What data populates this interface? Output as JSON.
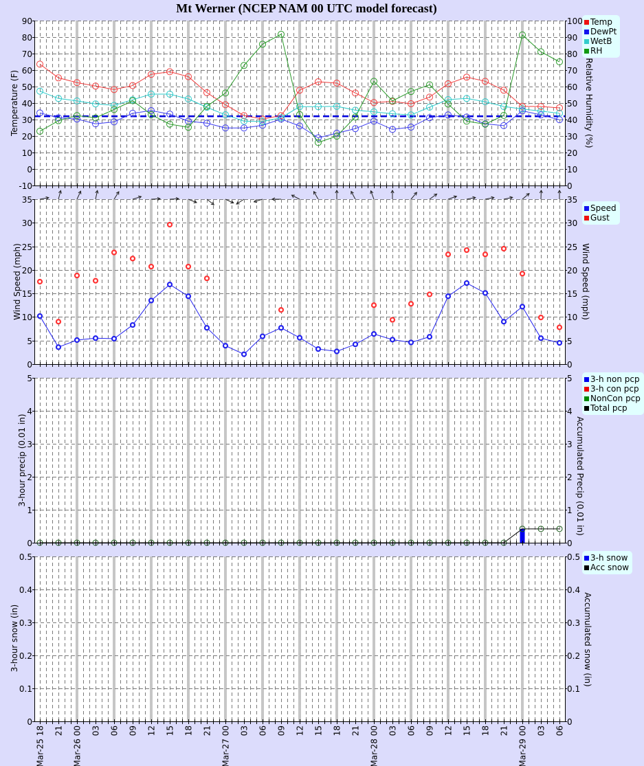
{
  "title": "Mt Werner (NCEP NAM 00 UTC model forecast)",
  "x_axis": {
    "interval_hours": 3,
    "tick_labels": [
      "Mar-25 18",
      "21",
      "Mar-26 00",
      "03",
      "06",
      "09",
      "12",
      "15",
      "18",
      "21",
      "Mar-27 00",
      "03",
      "06",
      "09",
      "12",
      "15",
      "18",
      "21",
      "Mar-28 00",
      "03",
      "06",
      "09",
      "12",
      "15",
      "18",
      "21",
      "Mar-29 00",
      "03",
      "06"
    ]
  },
  "chart_data": [
    {
      "panel": "temperature",
      "type": "line",
      "title": "",
      "xlabel": "",
      "ylabel": "Temperature (F)",
      "y2label": "Relative Humidity (%)",
      "ylim": [
        -10,
        90
      ],
      "y2lim": [
        0,
        100
      ],
      "yticks": [
        "-10",
        "0",
        "10",
        "20",
        "30",
        "40",
        "50",
        "60",
        "70",
        "80",
        "90"
      ],
      "y2ticks": [
        "0",
        "10",
        "20",
        "30",
        "40",
        "50",
        "60",
        "70",
        "80",
        "90",
        "100"
      ],
      "grid": true,
      "legend_position": "right-top",
      "reference_lines": [
        {
          "value": 32,
          "color": "#0000dd",
          "style": "dashed"
        }
      ],
      "series": [
        {
          "name": "Temp",
          "axis": "y",
          "style": "line+rings",
          "color": "#f03c3c",
          "values": [
            63.6,
            55.3,
            52.4,
            50.3,
            48.2,
            50.6,
            57.4,
            59.0,
            56.0,
            46.3,
            39.0,
            32.4,
            30.3,
            32.4,
            47.8,
            52.9,
            52.1,
            46.1,
            40.3,
            41.0,
            39.6,
            43.6,
            51.7,
            55.7,
            53.2,
            47.8,
            38.0,
            37.9,
            37.1
          ]
        },
        {
          "name": "DewPt",
          "axis": "y",
          "style": "line+rings",
          "color": "#3c3cf0",
          "values": [
            34.0,
            31.1,
            30.3,
            27.4,
            28.6,
            33.8,
            35.4,
            33.3,
            29.0,
            27.8,
            24.9,
            24.9,
            26.5,
            30.3,
            26.1,
            18.9,
            21.7,
            24.5,
            29.0,
            24.0,
            25.4,
            31.1,
            32.8,
            31.5,
            27.4,
            26.3,
            35.3,
            32.8,
            29.9
          ]
        },
        {
          "name": "WetB",
          "axis": "y",
          "style": "line+rings",
          "color": "#2ccaca",
          "values": [
            47.2,
            42.8,
            41.3,
            39.5,
            38.6,
            42.0,
            45.4,
            45.4,
            42.5,
            37.4,
            32.9,
            29.0,
            28.8,
            31.1,
            37.8,
            37.8,
            38.0,
            35.7,
            34.7,
            33.5,
            32.8,
            37.5,
            42.1,
            42.8,
            40.8,
            37.9,
            36.4,
            35.1,
            33.8
          ]
        },
        {
          "name": "RH",
          "axis": "y2",
          "style": "line+rings",
          "color": "#2a9a2a",
          "values": [
            32.9,
            39.3,
            42.4,
            41.0,
            46.1,
            51.4,
            43.0,
            37.2,
            35.3,
            48.0,
            56.1,
            72.8,
            85.7,
            91.7,
            43.0,
            26.1,
            29.9,
            41.5,
            63.2,
            51.3,
            57.0,
            61.1,
            49.4,
            39.0,
            37.2,
            42.5,
            91.3,
            81.1,
            75.0
          ]
        }
      ],
      "legend": [
        {
          "label": "Temp",
          "color": "#ee1111"
        },
        {
          "label": "DewPt",
          "color": "#1111ee"
        },
        {
          "label": "WetB",
          "color": "#33cccc"
        },
        {
          "label": "RH",
          "color": "#119911"
        }
      ]
    },
    {
      "panel": "wind",
      "type": "line",
      "title": "",
      "xlabel": "",
      "ylabel": "Wind Speed (mph)",
      "y2label": "Wind Speed (mph)",
      "ylim": [
        0,
        35
      ],
      "y2lim": [
        0,
        35
      ],
      "yticks": [
        "0",
        "5",
        "10",
        "15",
        "20",
        "25",
        "30",
        "35"
      ],
      "y2ticks": [
        "0",
        "5",
        "10",
        "15",
        "20",
        "25",
        "30",
        "35"
      ],
      "grid": true,
      "legend_position": "right-top",
      "wind_direction_arrows_deg": [
        10,
        75,
        65,
        78,
        58,
        17,
        3,
        3,
        -22,
        -38,
        -25,
        -147,
        -163,
        180,
        153,
        120,
        90,
        118,
        110,
        90,
        50,
        36,
        19,
        11,
        11,
        12,
        40,
        88,
        90
      ],
      "series": [
        {
          "name": "Speed",
          "axis": "y",
          "style": "line+dots",
          "color": "#2222ee",
          "values": [
            10.2,
            3.6,
            5.1,
            5.5,
            5.4,
            8.3,
            13.5,
            16.9,
            14.4,
            7.7,
            3.9,
            2.1,
            5.9,
            7.7,
            5.6,
            3.2,
            2.7,
            4.2,
            6.4,
            5.2,
            4.6,
            5.8,
            14.4,
            17.2,
            15.1,
            9.0,
            12.2,
            5.5,
            4.5
          ]
        },
        {
          "name": "Gust",
          "axis": "y",
          "style": "dots",
          "color": "#ff3333",
          "values": [
            17.5,
            9.0,
            18.8,
            17.7,
            23.7,
            22.4,
            20.7,
            29.6,
            20.7,
            18.2,
            null,
            null,
            null,
            11.5,
            null,
            null,
            null,
            null,
            12.5,
            9.4,
            12.8,
            14.8,
            23.3,
            24.2,
            23.3,
            24.5,
            19.2,
            9.9,
            7.8
          ]
        }
      ],
      "legend": [
        {
          "label": "Speed",
          "color": "#1111ee"
        },
        {
          "label": "Gust",
          "color": "#ee1111"
        }
      ]
    },
    {
      "panel": "precip",
      "type": "bar",
      "title": "",
      "xlabel": "",
      "ylabel": "3-hour precip (0.01 in)",
      "y2label": "Accumulated Precip (0.01 in)",
      "ylim": [
        0,
        5
      ],
      "y2lim": [
        0,
        5
      ],
      "yticks": [
        "0",
        "1",
        "2",
        "3",
        "4",
        "5"
      ],
      "y2ticks": [
        "0",
        "1",
        "2",
        "3",
        "4",
        "5"
      ],
      "grid": true,
      "legend_position": "right-top",
      "series": [
        {
          "name": "3-h non pcp",
          "axis": "y",
          "style": "bar",
          "color": "#0000ee",
          "values": [
            0,
            0,
            0,
            0,
            0,
            0,
            0,
            0,
            0,
            0,
            0,
            0,
            0,
            0,
            0,
            0,
            0,
            0,
            0,
            0,
            0,
            0,
            0,
            0,
            0,
            0,
            0.42,
            0,
            0
          ]
        },
        {
          "name": "3-h con pcp",
          "axis": "y",
          "style": "bar",
          "color": "#ee0000",
          "values": [
            0,
            0,
            0,
            0,
            0,
            0,
            0,
            0,
            0,
            0,
            0,
            0,
            0,
            0,
            0,
            0,
            0,
            0,
            0,
            0,
            0,
            0,
            0,
            0,
            0,
            0,
            0,
            0,
            0
          ]
        },
        {
          "name": "Total pcp",
          "axis": "y2",
          "style": "line",
          "color": "#000000",
          "values": [
            0,
            0,
            0,
            0,
            0,
            0,
            0,
            0,
            0,
            0,
            0,
            0,
            0,
            0,
            0,
            0,
            0,
            0,
            0,
            0,
            0,
            0,
            0,
            0,
            0,
            0,
            0.42,
            0.42,
            0.42
          ]
        },
        {
          "name": "NonCon pcp",
          "axis": "y2",
          "style": "rings",
          "color": "#1a5a1a",
          "values": [
            0,
            0,
            0,
            0,
            0,
            0,
            0,
            0,
            0,
            0,
            0,
            0,
            0,
            0,
            0,
            0,
            0,
            0,
            0,
            0,
            0,
            0,
            0,
            0,
            0,
            0,
            0.42,
            0.42,
            0.42
          ]
        }
      ],
      "legend": [
        {
          "label": "3-h non pcp",
          "color": "#0000ee"
        },
        {
          "label": "3-h con pcp",
          "color": "#ee0000"
        },
        {
          "label": "NonCon pcp",
          "color": "#008800"
        },
        {
          "label": "Total pcp",
          "color": "#000000"
        }
      ]
    },
    {
      "panel": "snow",
      "type": "bar",
      "title": "",
      "xlabel": "",
      "ylabel": "3-hour snow (in)",
      "y2label": "Accumulated snow (in)",
      "ylim": [
        0,
        0.5
      ],
      "y2lim": [
        0,
        0.5
      ],
      "yticks": [
        "0",
        "0.1",
        "0.2",
        "0.3",
        "0.4",
        "0.5"
      ],
      "y2ticks": [
        "0",
        "0.1",
        "0.2",
        "0.3",
        "0.4",
        "0.5"
      ],
      "grid": true,
      "legend_position": "right-top",
      "series": [
        {
          "name": "3-h snow",
          "axis": "y",
          "style": "bar",
          "color": "#0000ee",
          "values": []
        },
        {
          "name": "Acc snow",
          "axis": "y2",
          "style": "line",
          "color": "#000000",
          "values": []
        }
      ],
      "legend": [
        {
          "label": "3-h snow",
          "color": "#0000ee"
        },
        {
          "label": "Acc snow",
          "color": "#000000"
        }
      ]
    }
  ]
}
